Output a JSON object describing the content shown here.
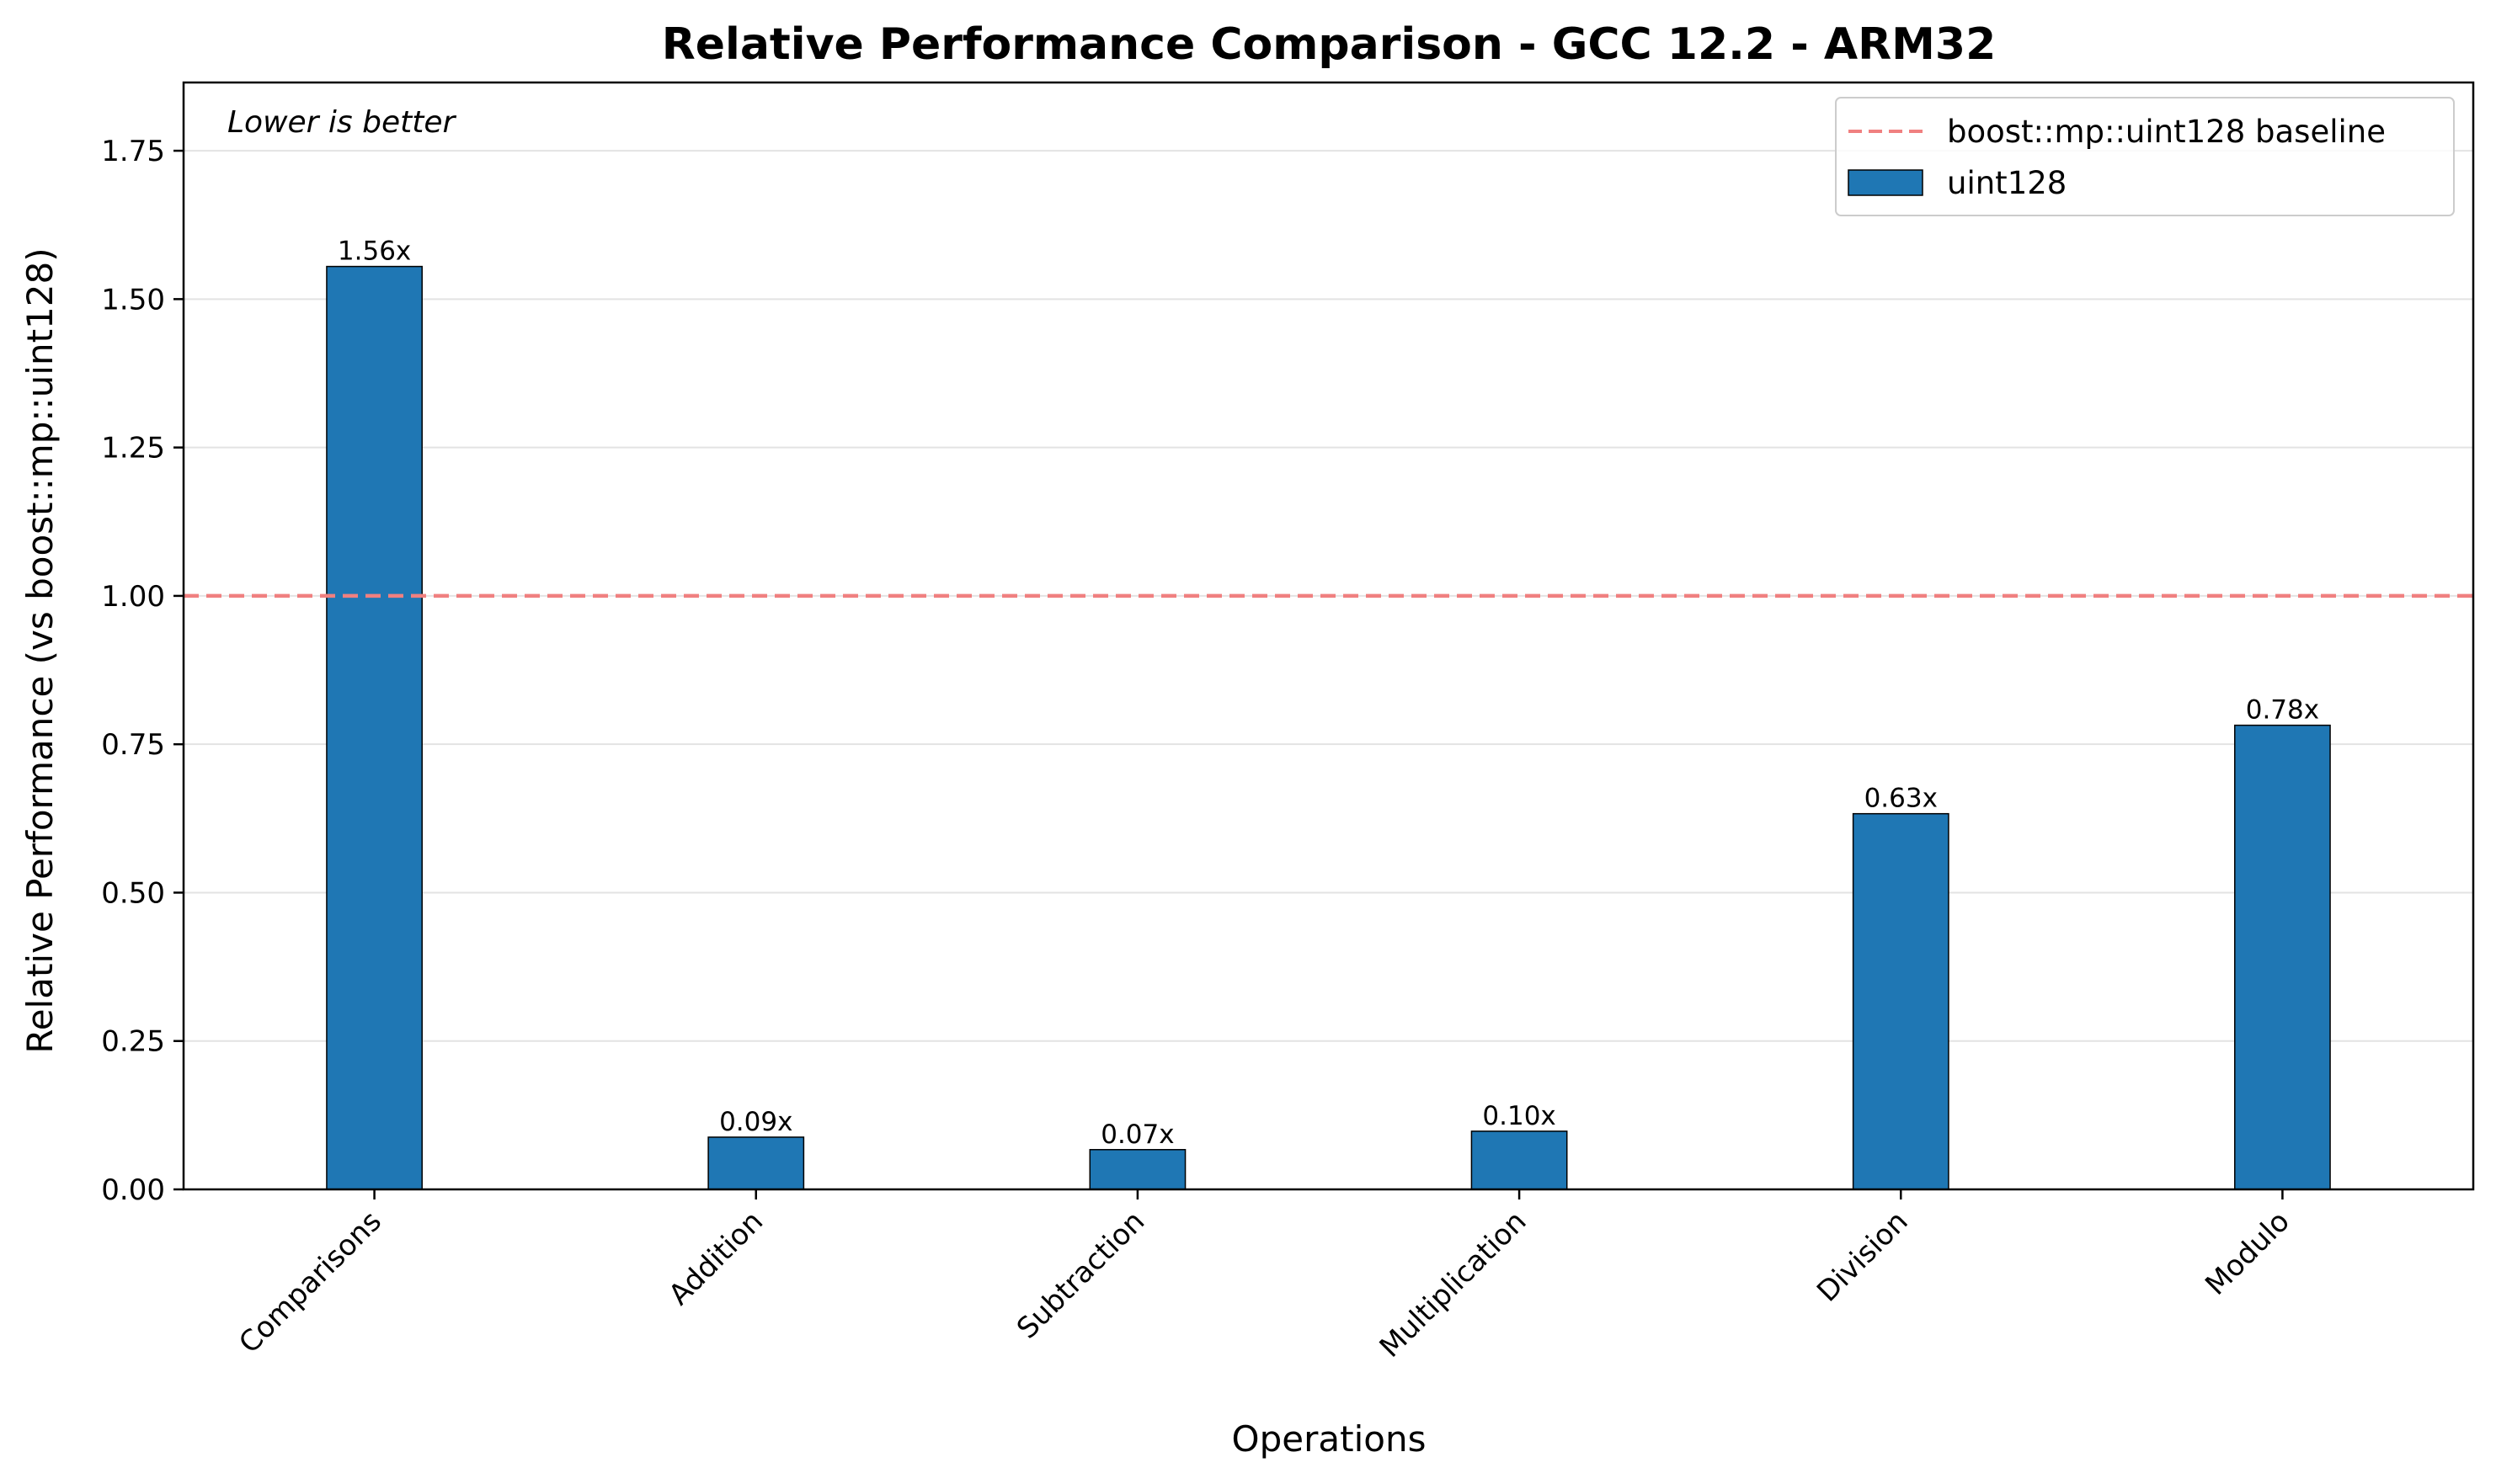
{
  "chart_data": {
    "type": "bar",
    "title": "Relative Performance Comparison - GCC 12.2 - ARM32",
    "xlabel": "Operations",
    "ylabel": "Relative Performance (vs boost::mp::uint128)",
    "annotation": "Lower is better",
    "categories": [
      "Comparisons",
      "Addition",
      "Subtraction",
      "Multiplication",
      "Division",
      "Modulo"
    ],
    "series": [
      {
        "name": "uint128",
        "values": [
          1.555,
          0.088,
          0.067,
          0.098,
          0.633,
          0.782
        ],
        "labels": [
          "1.56x",
          "0.09x",
          "0.07x",
          "0.10x",
          "0.63x",
          "0.78x"
        ],
        "color": "#1f77b4"
      }
    ],
    "baseline": {
      "name": "boost::mp::uint128 baseline",
      "value": 1.0,
      "color": "#f08080"
    },
    "ylim": [
      0,
      1.865
    ],
    "yticks": [
      0,
      0.25,
      0.5,
      0.75,
      1.0,
      1.25,
      1.5,
      1.75
    ],
    "ytick_labels": [
      "0.00",
      "0.25",
      "0.50",
      "0.75",
      "1.00",
      "1.25",
      "1.50",
      "1.75"
    ],
    "grid": "y",
    "legend_position": "top-right"
  }
}
